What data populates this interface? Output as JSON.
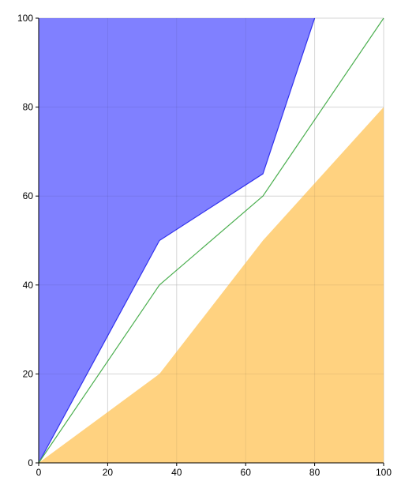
{
  "chart_data": {
    "type": "area",
    "x_ticks": [
      0,
      20,
      40,
      60,
      80,
      100
    ],
    "y_ticks": [
      0,
      20,
      40,
      60,
      80,
      100
    ],
    "xlim": [
      0,
      100
    ],
    "ylim": [
      0,
      100
    ],
    "grid": true,
    "series": [
      {
        "kind": "area-above",
        "color": "#8080ff",
        "stroke": "#3333ee",
        "points": [
          [
            0,
            0
          ],
          [
            35,
            50
          ],
          [
            65,
            65
          ],
          [
            80,
            100
          ]
        ]
      },
      {
        "kind": "area-below",
        "color": "#ffd280",
        "stroke": "#ffd280",
        "points": [
          [
            0,
            0
          ],
          [
            35,
            20
          ],
          [
            65,
            50
          ],
          [
            100,
            80
          ]
        ]
      },
      {
        "kind": "line",
        "color": "#4caf50",
        "points": [
          [
            0,
            0
          ],
          [
            35,
            40
          ],
          [
            65,
            60
          ],
          [
            100,
            100
          ]
        ]
      }
    ]
  }
}
